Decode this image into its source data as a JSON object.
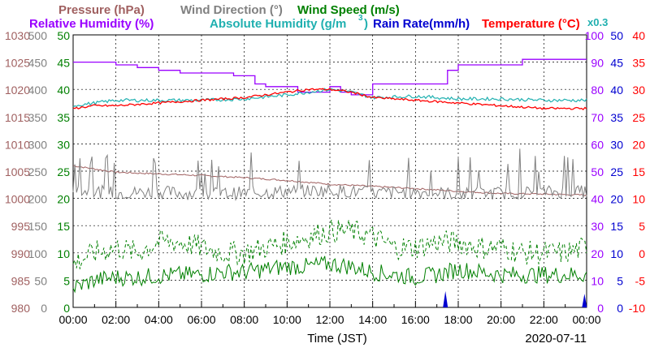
{
  "chart_data": {
    "type": "line",
    "title": "",
    "xlabel": "Time (JST)",
    "date": "2020-07-11",
    "x_ticks": [
      "00:00",
      "02:00",
      "04:00",
      "06:00",
      "08:00",
      "10:00",
      "12:00",
      "14:00",
      "16:00",
      "18:00",
      "20:00",
      "22:00",
      "00:00"
    ],
    "x_range_hours": [
      0,
      24
    ],
    "grid": true,
    "legend": {
      "pressure": "Pressure (hPa)",
      "wind_dir": "Wind Direction (°)",
      "wind_speed": "Wind Speed (m/s)",
      "rh": "Relative Humidity (%)",
      "abs_hum_label": "Absolute Humidity (g/m",
      "abs_hum_sup": "3",
      "abs_hum_close": ")",
      "rain": "Rain Rate(mm/h)",
      "temp": "Temperature (°C)",
      "abs_hum_scale": "x0.3"
    },
    "colors": {
      "pressure": "#a06060",
      "wind_dir": "#808080",
      "wind_speed": "#008000",
      "rh": "#9a00ff",
      "abs_hum": "#20b0b0",
      "rain": "#0000d0",
      "temp": "#ff0000"
    },
    "axes": {
      "pressure": [
        "980",
        "985",
        "990",
        "995",
        "1000",
        "1005",
        "1010",
        "1015",
        "1020",
        "1025",
        "1030"
      ],
      "wind_dir": [
        "0",
        "50",
        "100",
        "150",
        "200",
        "250",
        "300",
        "350",
        "400",
        "450",
        "500"
      ],
      "wind_speed": [
        "0",
        "5",
        "10",
        "15",
        "20",
        "25",
        "30",
        "35",
        "40",
        "45",
        "50"
      ],
      "rh": [
        "0",
        "10",
        "20",
        "30",
        "40",
        "50",
        "60",
        "70",
        "80",
        "90",
        "100"
      ],
      "rain": [
        "0",
        "5",
        "10",
        "15",
        "20",
        "25",
        "30",
        "35",
        "40",
        "45",
        "50"
      ],
      "temp": [
        "-10",
        "-5",
        "0",
        "5",
        "10",
        "15",
        "20",
        "25",
        "30",
        "35",
        "40"
      ]
    },
    "series": [
      {
        "key": "pressure",
        "unit": "hPa",
        "hours": [
          0,
          2,
          4,
          6,
          8,
          10,
          12,
          14,
          16,
          18,
          20,
          22,
          24
        ],
        "values": [
          1006,
          1004.8,
          1004.5,
          1004.2,
          1003.8,
          1003.3,
          1002.6,
          1002.2,
          1001.8,
          1001.3,
          1000.9,
          1000.8,
          1000.6
        ]
      },
      {
        "key": "wind_dir",
        "unit": "deg",
        "hours": [
          0,
          2,
          4,
          6,
          8,
          10,
          12,
          14,
          16,
          18,
          20,
          22,
          24
        ],
        "values": [
          215,
          210,
          212,
          208,
          210,
          213,
          215,
          210,
          212,
          208,
          210,
          212,
          212
        ]
      },
      {
        "key": "wind_speed",
        "unit": "m/s",
        "hours": [
          0,
          1,
          2,
          3,
          4,
          5,
          6,
          7,
          8,
          9,
          10,
          11,
          12,
          13,
          14,
          15,
          16,
          17,
          18,
          19,
          20,
          21,
          22,
          23,
          24
        ],
        "values": [
          3.5,
          5,
          5.5,
          5.5,
          5.8,
          6,
          6,
          6.5,
          6.5,
          7,
          7.5,
          7.5,
          8,
          7.5,
          6.5,
          6,
          5.5,
          6,
          7,
          6.5,
          6,
          6,
          6,
          6,
          6
        ]
      },
      {
        "key": "wind_gust",
        "unit": "m/s",
        "hours": [
          0,
          1,
          2,
          3,
          4,
          5,
          6,
          7,
          8,
          9,
          10,
          11,
          12,
          13,
          14,
          15,
          16,
          17,
          18,
          19,
          20,
          21,
          22,
          23,
          24
        ],
        "values": [
          8,
          10,
          11,
          10,
          12,
          12,
          11,
          10,
          10,
          11,
          12,
          13,
          14,
          14,
          13,
          11,
          11,
          12,
          12,
          11,
          11,
          10,
          10,
          10,
          11
        ]
      },
      {
        "key": "rh",
        "unit": "%",
        "hours": [
          0,
          1,
          2,
          3,
          4,
          5,
          6,
          7,
          7.5,
          8.5,
          9,
          10,
          10.5,
          11,
          11.5,
          12,
          12.5,
          13,
          14,
          16,
          17,
          17.5,
          18,
          19,
          20,
          21,
          22,
          23,
          24
        ],
        "values": [
          90,
          90,
          89,
          88,
          87,
          86,
          86,
          86,
          85,
          82,
          81,
          81,
          79,
          79,
          79,
          81,
          79,
          78,
          82,
          82,
          82,
          87,
          89,
          89,
          89,
          91,
          91,
          91,
          91
        ]
      },
      {
        "key": "abs_hum",
        "unit": "g/m3 (x0.3)",
        "hours": [
          0,
          2,
          4,
          6,
          8,
          10,
          11,
          12,
          13,
          14,
          16,
          18,
          20,
          22,
          24
        ],
        "values": [
          74,
          76,
          76,
          76,
          76.5,
          78,
          79,
          80,
          79,
          77,
          77.5,
          76.5,
          76.5,
          76,
          76
        ]
      },
      {
        "key": "temp",
        "unit": "°C",
        "hours": [
          0,
          1,
          2,
          4,
          6,
          8,
          9,
          10,
          11,
          12,
          13,
          13.5,
          14,
          16,
          18,
          20,
          22,
          24
        ],
        "values": [
          26.5,
          27,
          27,
          27.5,
          28,
          28.5,
          29,
          29.5,
          30,
          30,
          29.5,
          29,
          28.5,
          28,
          27.5,
          27,
          26.5,
          26.5
        ]
      },
      {
        "key": "rain",
        "unit": "mm/h",
        "hours": [
          17.4,
          23.9
        ],
        "values": [
          3,
          2.5
        ]
      }
    ]
  }
}
